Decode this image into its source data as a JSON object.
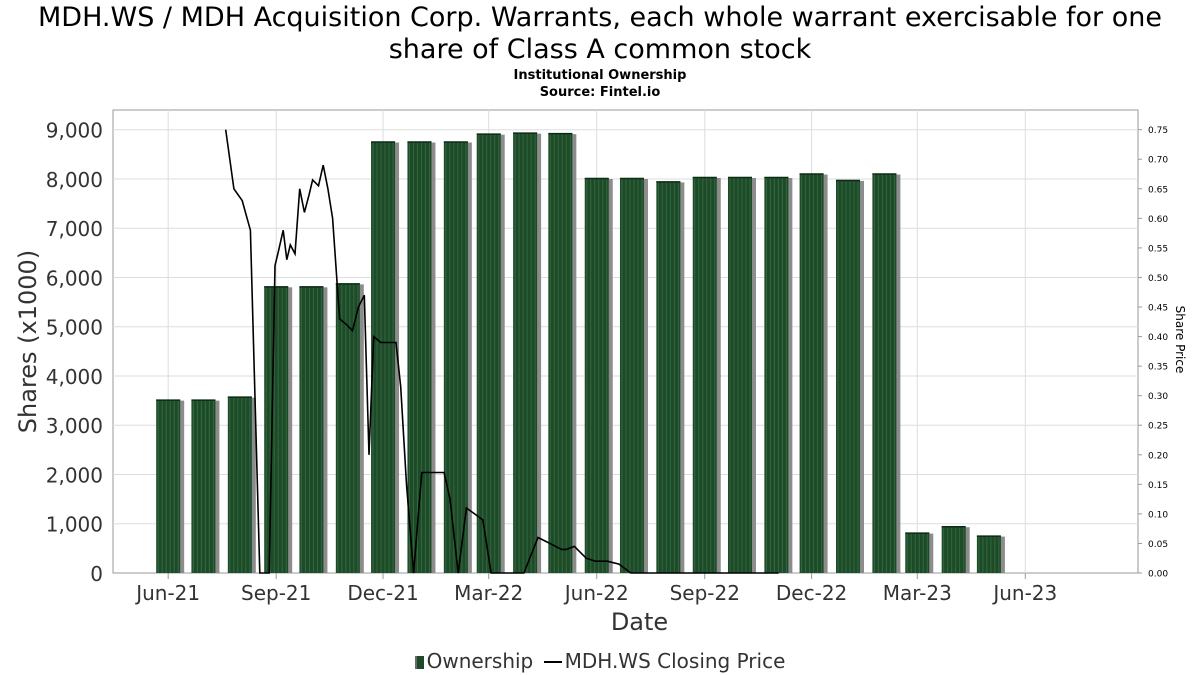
{
  "header": {
    "title_line1": "MDH.WS / MDH Acquisition Corp. Warrants, each whole warrant exercisable for one",
    "title_line2": "share of Class A common stock",
    "subtitle_line1": "Institutional Ownership",
    "subtitle_line2": "Source: Fintel.io"
  },
  "legend": {
    "ownership": "Ownership",
    "price": "MDH.WS Closing Price"
  },
  "colors": {
    "bar": "#1f4a2a",
    "bar_stripe": "#2f6a3c",
    "bar_shadow": "#8c8c8c",
    "line": "#000000",
    "grid": "#dddddd"
  },
  "chart_data": {
    "type": "bar",
    "xlabel": "Date",
    "ylabel": "Shares (x1000)",
    "y2label": "Share Price",
    "ylim": [
      0,
      9400
    ],
    "y2lim": [
      0,
      0.7833
    ],
    "grid": true,
    "legend_position": "bottom",
    "x_ticks": [
      "Jun-21",
      "Sep-21",
      "Dec-21",
      "Mar-22",
      "Jun-22",
      "Sep-22",
      "Dec-22",
      "Mar-23",
      "Jun-23"
    ],
    "y_ticks": [
      "0",
      "1,000",
      "2,000",
      "3,000",
      "4,000",
      "5,000",
      "6,000",
      "7,000",
      "8,000",
      "9,000"
    ],
    "y2_ticks": [
      "0.00",
      "0.05",
      "0.10",
      "0.15",
      "0.20",
      "0.25",
      "0.30",
      "0.35",
      "0.40",
      "0.45",
      "0.50",
      "0.55",
      "0.60",
      "0.65",
      "0.70",
      "0.75"
    ],
    "series": [
      {
        "name": "Ownership",
        "type": "bar",
        "x": [
          "2021-06-01",
          "2021-07-01",
          "2021-08-01",
          "2021-09-01",
          "2021-10-01",
          "2021-11-01",
          "2021-12-01",
          "2022-01-01",
          "2022-02-01",
          "2022-03-01",
          "2022-04-01",
          "2022-05-01",
          "2022-06-01",
          "2022-07-01",
          "2022-08-01",
          "2022-09-01",
          "2022-10-01",
          "2022-11-01",
          "2022-12-01",
          "2023-01-01",
          "2023-02-01",
          "2023-03-01",
          "2023-04-01",
          "2023-05-01"
        ],
        "values": [
          3520,
          3520,
          3580,
          5820,
          5820,
          5880,
          8760,
          8760,
          8760,
          8920,
          8940,
          8930,
          8020,
          8020,
          7950,
          8040,
          8040,
          8040,
          8110,
          7980,
          8110,
          820,
          950,
          760
        ]
      },
      {
        "name": "MDH.WS Closing Price",
        "type": "line",
        "x": [
          "2021-07-20",
          "2021-07-27",
          "2021-08-03",
          "2021-08-10",
          "2021-08-18",
          "2021-08-21",
          "2021-08-26",
          "2021-08-31",
          "2021-09-03",
          "2021-09-07",
          "2021-09-10",
          "2021-09-13",
          "2021-09-17",
          "2021-09-21",
          "2021-09-25",
          "2021-09-29",
          "2021-10-02",
          "2021-10-07",
          "2021-10-11",
          "2021-10-15",
          "2021-10-19",
          "2021-10-25",
          "2021-10-31",
          "2021-11-05",
          "2021-11-10",
          "2021-11-15",
          "2021-11-19",
          "2021-11-23",
          "2021-11-29",
          "2021-12-03",
          "2021-12-07",
          "2021-12-12",
          "2021-12-16",
          "2021-12-21",
          "2021-12-27",
          "2022-01-03",
          "2022-01-14",
          "2022-01-22",
          "2022-01-27",
          "2022-02-03",
          "2022-02-10",
          "2022-02-17",
          "2022-02-24",
          "2022-03-03",
          "2022-03-17",
          "2022-03-31",
          "2022-04-12",
          "2022-04-22",
          "2022-05-02",
          "2022-05-06",
          "2022-05-13",
          "2022-05-23",
          "2022-05-31",
          "2022-06-10",
          "2022-06-20",
          "2022-06-30",
          "2022-07-20",
          "2022-07-31",
          "2022-08-10",
          "2022-08-18",
          "2022-08-31",
          "2022-09-06",
          "2022-09-14",
          "2022-09-22",
          "2022-09-30",
          "2022-10-14",
          "2022-10-25",
          "2022-11-03"
        ],
        "values": [
          0.75,
          0.65,
          0.63,
          0.58,
          0.0,
          0.0,
          0.0,
          0.52,
          0.545,
          0.58,
          0.53,
          0.555,
          0.54,
          0.65,
          0.61,
          0.64,
          0.665,
          0.655,
          0.69,
          0.65,
          0.6,
          0.43,
          0.42,
          0.41,
          0.45,
          0.47,
          0.2,
          0.4,
          0.39,
          0.39,
          0.39,
          0.39,
          0.315,
          0.15,
          0.0,
          0.17,
          0.17,
          0.17,
          0.125,
          0.0,
          0.11,
          0.1,
          0.09,
          0.0,
          0.0,
          0.0,
          0.06,
          0.05,
          0.04,
          0.04,
          0.045,
          0.025,
          0.02,
          0.02,
          0.015,
          0.0,
          0.0,
          0.0,
          0.0,
          0.0,
          0.0,
          0.0,
          0.0,
          0.0,
          0.0,
          0.0,
          0.0,
          0.0
        ]
      }
    ]
  }
}
